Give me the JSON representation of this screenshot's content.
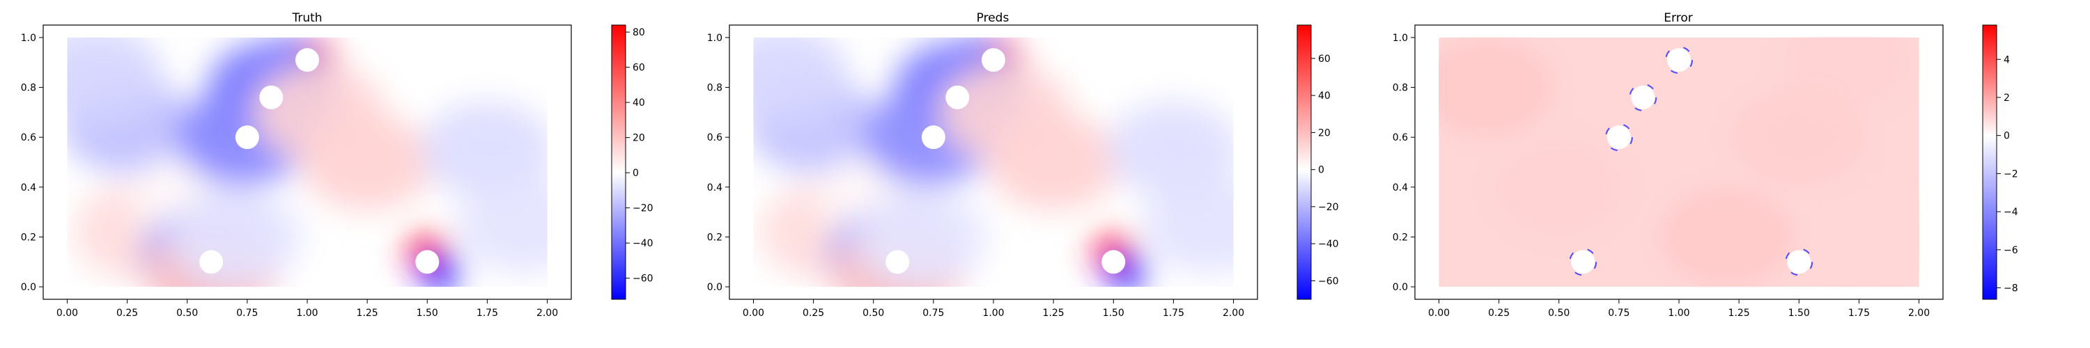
{
  "chart_data": [
    {
      "type": "heatmap",
      "title": "Truth",
      "xlabel": "",
      "ylabel": "",
      "xlim": [
        -0.1,
        2.1
      ],
      "ylim": [
        -0.05,
        1.05
      ],
      "xticks": [
        "0.00",
        "0.25",
        "0.50",
        "0.75",
        "1.00",
        "1.25",
        "1.50",
        "1.75",
        "2.00"
      ],
      "yticks": [
        "0.0",
        "0.2",
        "0.4",
        "0.6",
        "0.8",
        "1.0"
      ],
      "domain": {
        "x": [
          0,
          2
        ],
        "y": [
          0,
          1
        ]
      },
      "colormap": "bwr",
      "colorbar": {
        "min": -72,
        "max": 84,
        "ticks": [
          "80",
          "60",
          "40",
          "20",
          "0",
          "−20",
          "−40",
          "−60"
        ]
      },
      "holes": [
        {
          "x": 1.0,
          "y": 0.91
        },
        {
          "x": 0.85,
          "y": 0.76
        },
        {
          "x": 0.75,
          "y": 0.6
        },
        {
          "x": 0.6,
          "y": 0.1
        },
        {
          "x": 1.5,
          "y": 0.1
        }
      ],
      "field": [
        {
          "x": 0.25,
          "y": 0.65,
          "value": -18
        },
        {
          "x": 0.12,
          "y": 0.85,
          "value": -12
        },
        {
          "x": 0.3,
          "y": 0.22,
          "value": 12
        },
        {
          "x": 0.55,
          "y": 0.35,
          "value": 2
        },
        {
          "x": 0.95,
          "y": 0.93,
          "value": -55
        },
        {
          "x": 1.03,
          "y": 0.92,
          "value": 65
        },
        {
          "x": 0.86,
          "y": 0.79,
          "value": -40
        },
        {
          "x": 0.73,
          "y": 0.6,
          "value": -35
        },
        {
          "x": 1.25,
          "y": 0.5,
          "value": 15
        },
        {
          "x": 1.05,
          "y": 0.7,
          "value": 14
        },
        {
          "x": 1.75,
          "y": 0.55,
          "value": -10
        },
        {
          "x": 1.9,
          "y": 0.25,
          "value": -8
        },
        {
          "x": 1.5,
          "y": 0.14,
          "value": 70
        },
        {
          "x": 1.55,
          "y": 0.06,
          "value": -65
        },
        {
          "x": 0.58,
          "y": 0.12,
          "value": -30
        },
        {
          "x": 0.6,
          "y": 0.05,
          "value": 20
        },
        {
          "x": 0.7,
          "y": 0.2,
          "value": -8
        }
      ]
    },
    {
      "type": "heatmap",
      "title": "Preds",
      "xlabel": "",
      "ylabel": "",
      "xlim": [
        -0.1,
        2.1
      ],
      "ylim": [
        -0.05,
        1.05
      ],
      "xticks": [
        "0.00",
        "0.25",
        "0.50",
        "0.75",
        "1.00",
        "1.25",
        "1.50",
        "1.75",
        "2.00"
      ],
      "yticks": [
        "0.0",
        "0.2",
        "0.4",
        "0.6",
        "0.8",
        "1.0"
      ],
      "domain": {
        "x": [
          0,
          2
        ],
        "y": [
          0,
          1
        ]
      },
      "colormap": "bwr",
      "colorbar": {
        "min": -70,
        "max": 78,
        "ticks": [
          "60",
          "40",
          "20",
          "0",
          "−20",
          "−40",
          "−60"
        ]
      },
      "holes": [
        {
          "x": 1.0,
          "y": 0.91
        },
        {
          "x": 0.85,
          "y": 0.76
        },
        {
          "x": 0.75,
          "y": 0.6
        },
        {
          "x": 0.6,
          "y": 0.1
        },
        {
          "x": 1.5,
          "y": 0.1
        }
      ],
      "field": [
        {
          "x": 0.25,
          "y": 0.65,
          "value": -17
        },
        {
          "x": 0.12,
          "y": 0.85,
          "value": -11
        },
        {
          "x": 0.3,
          "y": 0.22,
          "value": 11
        },
        {
          "x": 0.55,
          "y": 0.35,
          "value": 2
        },
        {
          "x": 0.95,
          "y": 0.93,
          "value": -52
        },
        {
          "x": 1.03,
          "y": 0.92,
          "value": 58
        },
        {
          "x": 0.86,
          "y": 0.79,
          "value": -38
        },
        {
          "x": 0.73,
          "y": 0.6,
          "value": -32
        },
        {
          "x": 1.25,
          "y": 0.5,
          "value": 14
        },
        {
          "x": 1.05,
          "y": 0.7,
          "value": 13
        },
        {
          "x": 1.75,
          "y": 0.55,
          "value": -9
        },
        {
          "x": 1.9,
          "y": 0.25,
          "value": -8
        },
        {
          "x": 1.5,
          "y": 0.14,
          "value": 65
        },
        {
          "x": 1.55,
          "y": 0.06,
          "value": -62
        },
        {
          "x": 0.58,
          "y": 0.12,
          "value": -28
        },
        {
          "x": 0.6,
          "y": 0.05,
          "value": 18
        },
        {
          "x": 0.7,
          "y": 0.2,
          "value": -7
        }
      ]
    },
    {
      "type": "heatmap",
      "title": "Error",
      "xlabel": "",
      "ylabel": "",
      "xlim": [
        -0.1,
        2.1
      ],
      "ylim": [
        -0.05,
        1.05
      ],
      "xticks": [
        "0.00",
        "0.25",
        "0.50",
        "0.75",
        "1.00",
        "1.25",
        "1.50",
        "1.75",
        "2.00"
      ],
      "yticks": [
        "0.0",
        "0.2",
        "0.4",
        "0.6",
        "0.8",
        "1.0"
      ],
      "domain": {
        "x": [
          0,
          2
        ],
        "y": [
          0,
          1
        ]
      },
      "colormap": "bwr",
      "colorbar": {
        "min": -8.6,
        "max": 5.8,
        "ticks": [
          "4",
          "2",
          "0",
          "−2",
          "−4",
          "−6",
          "−8"
        ]
      },
      "holes": [
        {
          "x": 1.0,
          "y": 0.91
        },
        {
          "x": 0.85,
          "y": 0.76
        },
        {
          "x": 0.75,
          "y": 0.6
        },
        {
          "x": 0.6,
          "y": 0.1
        },
        {
          "x": 1.5,
          "y": 0.1
        }
      ],
      "field": [
        {
          "x": 0.2,
          "y": 0.8,
          "value": 1.2
        },
        {
          "x": 0.5,
          "y": 0.4,
          "value": 1.0
        },
        {
          "x": 1.5,
          "y": 0.6,
          "value": 1.1
        },
        {
          "x": 1.8,
          "y": 0.2,
          "value": 0.9
        },
        {
          "x": 1.2,
          "y": 0.2,
          "value": 1.2
        },
        {
          "x": 1.7,
          "y": 0.9,
          "value": 1.0
        }
      ],
      "hole_rim_values": [
        -6,
        -3
      ]
    }
  ]
}
